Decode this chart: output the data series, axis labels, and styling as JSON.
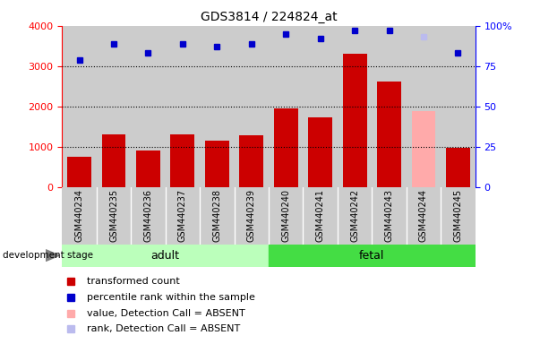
{
  "title": "GDS3814 / 224824_at",
  "samples": [
    "GSM440234",
    "GSM440235",
    "GSM440236",
    "GSM440237",
    "GSM440238",
    "GSM440239",
    "GSM440240",
    "GSM440241",
    "GSM440242",
    "GSM440243",
    "GSM440244",
    "GSM440245"
  ],
  "bar_values": [
    750,
    1320,
    920,
    1310,
    1150,
    1300,
    1960,
    1730,
    3300,
    2620,
    1890,
    980
  ],
  "rank_values": [
    79,
    89,
    83,
    89,
    87,
    89,
    95,
    92,
    97,
    97,
    93,
    83
  ],
  "bar_colors": [
    "#cc0000",
    "#cc0000",
    "#cc0000",
    "#cc0000",
    "#cc0000",
    "#cc0000",
    "#cc0000",
    "#cc0000",
    "#cc0000",
    "#cc0000",
    "#ffaaaa",
    "#cc0000"
  ],
  "rank_colors": [
    "#0000cc",
    "#0000cc",
    "#0000cc",
    "#0000cc",
    "#0000cc",
    "#0000cc",
    "#0000cc",
    "#0000cc",
    "#0000cc",
    "#0000cc",
    "#bbbbee",
    "#0000cc"
  ],
  "adult_indices": [
    0,
    1,
    2,
    3,
    4,
    5
  ],
  "fetal_indices": [
    6,
    7,
    8,
    9,
    10,
    11
  ],
  "ylim_left": [
    0,
    4000
  ],
  "ylim_right": [
    0,
    100
  ],
  "left_ticks": [
    0,
    1000,
    2000,
    3000,
    4000
  ],
  "right_ticks": [
    0,
    25,
    50,
    75,
    100
  ],
  "right_tick_labels": [
    "0",
    "25",
    "50",
    "75",
    "100%"
  ],
  "adult_label": "adult",
  "fetal_label": "fetal",
  "stage_label": "development stage",
  "adult_color": "#bbffbb",
  "fetal_color": "#44dd44",
  "col_bg": "#cccccc",
  "plot_bg": "#ffffff",
  "legend_items": [
    {
      "label": "transformed count",
      "color": "#cc0000"
    },
    {
      "label": "percentile rank within the sample",
      "color": "#0000cc"
    },
    {
      "label": "value, Detection Call = ABSENT",
      "color": "#ffaaaa"
    },
    {
      "label": "rank, Detection Call = ABSENT",
      "color": "#bbbbee"
    }
  ]
}
